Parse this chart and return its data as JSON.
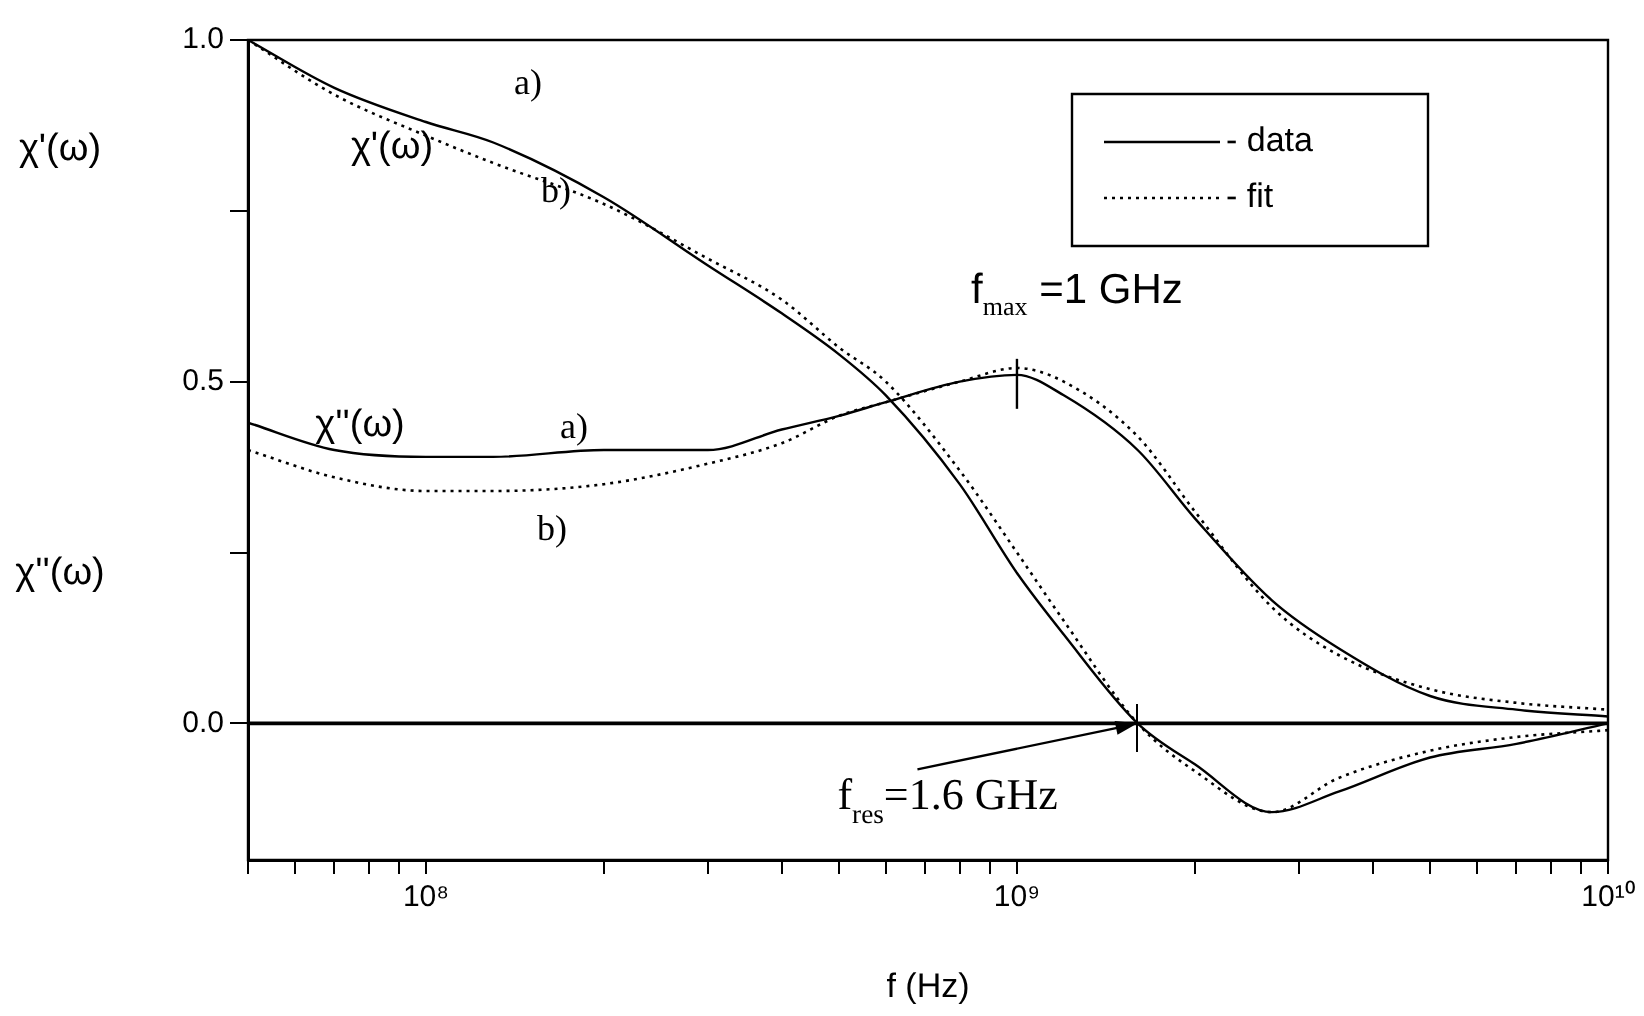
{
  "chart_data": {
    "type": "line",
    "xlabel": "f (Hz)",
    "log": "x",
    "xlim": [
      50000000,
      10000000000
    ],
    "ylim": [
      -0.2,
      1.0
    ],
    "xticks": [
      {
        "value": 50000000,
        "label": null
      },
      {
        "value": 60000000,
        "label": null
      },
      {
        "value": 70000000,
        "label": null
      },
      {
        "value": 80000000,
        "label": null
      },
      {
        "value": 90000000,
        "label": null
      },
      {
        "value": 100000000,
        "label": "10⁸"
      },
      {
        "value": 200000000,
        "label": null
      },
      {
        "value": 300000000,
        "label": null
      },
      {
        "value": 400000000,
        "label": null
      },
      {
        "value": 500000000,
        "label": null
      },
      {
        "value": 600000000,
        "label": null
      },
      {
        "value": 700000000,
        "label": null
      },
      {
        "value": 800000000,
        "label": null
      },
      {
        "value": 900000000,
        "label": null
      },
      {
        "value": 1000000000,
        "label": "10⁹"
      },
      {
        "value": 2000000000,
        "label": null
      },
      {
        "value": 3000000000,
        "label": null
      },
      {
        "value": 4000000000,
        "label": null
      },
      {
        "value": 5000000000,
        "label": null
      },
      {
        "value": 6000000000,
        "label": null
      },
      {
        "value": 7000000000,
        "label": null
      },
      {
        "value": 8000000000,
        "label": null
      },
      {
        "value": 9000000000,
        "label": null
      },
      {
        "value": 10000000000,
        "label": "10¹⁰"
      }
    ],
    "yticks": [
      {
        "value": 0,
        "label": "0.0"
      },
      {
        "value": 0.25,
        "label": null
      },
      {
        "value": 0.5,
        "label": "0.5"
      },
      {
        "value": 0.75,
        "label": null
      },
      {
        "value": 1,
        "label": "1.0"
      }
    ],
    "x": [
      50000000,
      70000000,
      100000000,
      130000000,
      200000000,
      300000000,
      400000000,
      500000000,
      600000000,
      800000000,
      1000000000,
      1200000000,
      1600000000,
      2000000000,
      2700000000,
      3500000000,
      5000000000,
      7000000000,
      10000000000
    ],
    "series": [
      {
        "name": "- data",
        "color": "#000000",
        "line_style": "solid",
        "values": [
          1.0,
          0.93,
          0.88,
          0.85,
          0.77,
          0.67,
          0.6,
          0.54,
          0.48,
          0.35,
          0.22,
          0.13,
          0.0,
          -0.06,
          -0.13,
          -0.1,
          -0.05,
          -0.03,
          0.0
        ]
      },
      {
        "name": "- fit",
        "color": "#000000",
        "line_style": "dotted",
        "values": [
          1.0,
          0.92,
          0.86,
          0.82,
          0.76,
          0.68,
          0.62,
          0.55,
          0.5,
          0.37,
          0.25,
          0.15,
          0.0,
          -0.07,
          -0.13,
          -0.08,
          -0.04,
          -0.02,
          -0.01
        ]
      },
      {
        "color": "#000000",
        "line_style": "solid",
        "values": [
          0.44,
          0.4,
          0.39,
          0.39,
          0.4,
          0.4,
          0.43,
          0.45,
          0.47,
          0.5,
          0.51,
          0.48,
          0.4,
          0.3,
          0.18,
          0.11,
          0.04,
          0.02,
          0.01
        ]
      },
      {
        "color": "#000000",
        "line_style": "dotted",
        "values": [
          0.4,
          0.36,
          0.34,
          0.34,
          0.35,
          0.38,
          0.41,
          0.45,
          0.47,
          0.5,
          0.52,
          0.5,
          0.42,
          0.31,
          0.17,
          0.1,
          0.05,
          0.03,
          0.02
        ]
      }
    ],
    "ref_lines": [
      {
        "axis": "y",
        "value": 0,
        "color": "#000000"
      }
    ],
    "legend": "top right",
    "marker": "none",
    "grid": false,
    "annotations": [
      "χ'(ω)",
      "χ''(ω)",
      "χ'(ω)",
      "a)",
      "b)",
      "χ''(ω)",
      "a)",
      "b)",
      {
        "text": "f$_{max}$ =1 GHz",
        "x": 1000000000,
        "y": 0.51
      },
      {
        "text": "f$_{res}$=1.6 GHz",
        "x": 1600000000,
        "y": 0
      }
    ]
  }
}
